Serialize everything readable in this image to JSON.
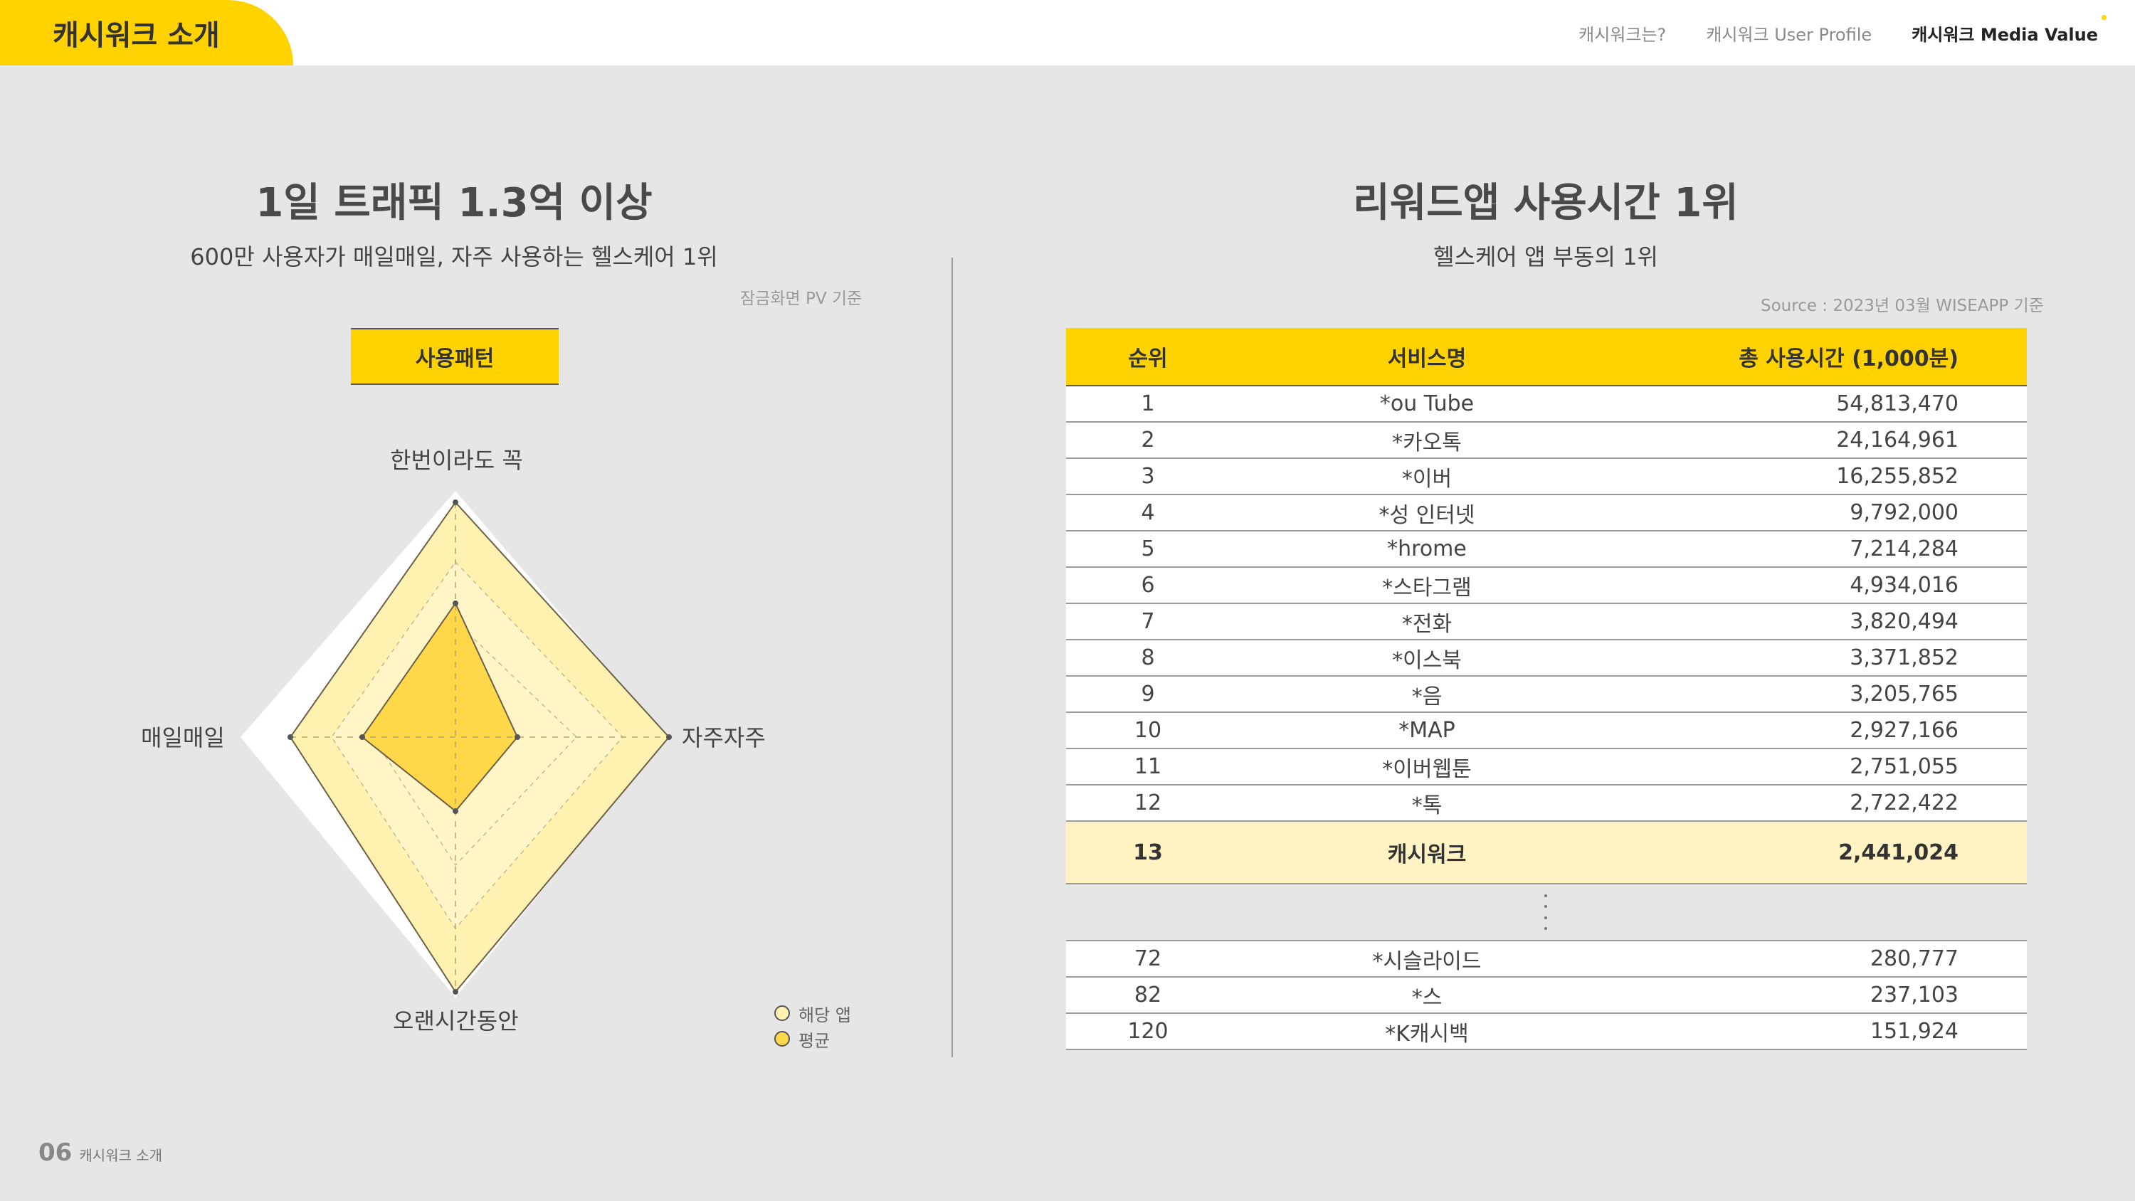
{
  "header": {
    "section_label": "캐시워크 소개",
    "nav": [
      "캐시워크는?",
      "캐시워크 User Profile",
      "캐시워크 Media Value"
    ],
    "active_nav_index": 2
  },
  "left": {
    "title": "1일 트래픽 1.3억 이상",
    "subtitle": "600만 사용자가 매일매일, 자주 사용하는 헬스케어 1위",
    "note": "잠금화면 PV 기준",
    "pattern_label": "사용패턴",
    "radar": {
      "axes": [
        "한번이라도 꼭",
        "자주자주",
        "오랜시간동안",
        "매일매일"
      ],
      "series": [
        {
          "name": "해당 앱",
          "color": "#fff1b0"
        },
        {
          "name": "평균",
          "color": "#ffd84a"
        }
      ]
    },
    "legend": [
      "해당 앱",
      "평균"
    ]
  },
  "right": {
    "title": "리워드앱 사용시간 1위",
    "subtitle": "헬스케어 앱 부동의 1위",
    "source": "Source : 2023년 03월 WISEAPP 기준",
    "table": {
      "headers": [
        "순위",
        "서비스명",
        "총 사용시간 (1,000분)"
      ],
      "rows": [
        [
          "1",
          "*ou Tube",
          "54,813,470"
        ],
        [
          "2",
          "*카오톡",
          "24,164,961"
        ],
        [
          "3",
          "*이버",
          "16,255,852"
        ],
        [
          "4",
          "*성 인터넷",
          "9,792,000"
        ],
        [
          "5",
          "*hrome",
          "7,214,284"
        ],
        [
          "6",
          "*스타그램",
          "4,934,016"
        ],
        [
          "7",
          "*전화",
          "3,820,494"
        ],
        [
          "8",
          "*이스북",
          "3,371,852"
        ],
        [
          "9",
          "*음",
          "3,205,765"
        ],
        [
          "10",
          "*MAP",
          "2,927,166"
        ],
        [
          "11",
          "*이버웹툰",
          "2,751,055"
        ],
        [
          "12",
          "*톡",
          "2,722,422"
        ]
      ],
      "highlight": [
        "13",
        "캐시워크",
        "2,441,024"
      ],
      "tail_rows": [
        [
          "72",
          "*시슬라이드",
          "280,777"
        ],
        [
          "82",
          "*스",
          "237,103"
        ],
        [
          "120",
          "*K캐시백",
          "151,924"
        ]
      ]
    }
  },
  "footer": {
    "page_number": "06",
    "section": "캐시워크 소개"
  }
}
